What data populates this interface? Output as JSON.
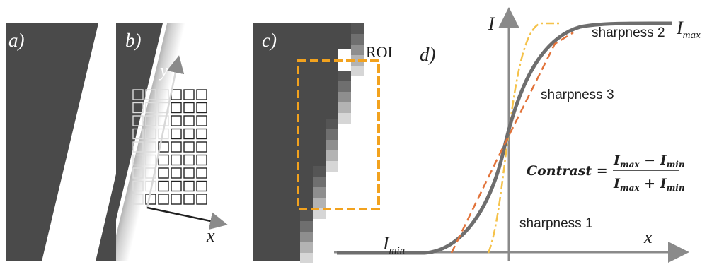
{
  "panels": {
    "a": {
      "label": "a)"
    },
    "b": {
      "label": "b)",
      "x_axis": "x",
      "y_axis": "y"
    },
    "c": {
      "label": "c)",
      "roi_label": "ROI"
    },
    "d": {
      "label": "d)",
      "y_axis": "I",
      "x_axis": "x",
      "i_max": {
        "base": "I",
        "sub": "max"
      },
      "i_min": {
        "base": "I",
        "sub": "min"
      },
      "curve_labels": [
        "sharpness 1",
        "sharpness 2",
        "sharpness 3"
      ],
      "formula": {
        "lhs": "Contrast =",
        "numerator": {
          "a": "I",
          "a_sub": "max",
          "op": " − ",
          "b": "I",
          "b_sub": "min"
        },
        "denominator": {
          "a": "I",
          "a_sub": "max",
          "op": " + ",
          "b": "I",
          "b_sub": "min"
        }
      }
    }
  },
  "colors": {
    "dark": "#4a4a4a",
    "gray_curve": "#6e6e6e",
    "orange_dashed": "#e2733a",
    "yellow_dashdot": "#f5c24a",
    "roi": "#f2a21e",
    "axis": "#8a8a8a"
  }
}
